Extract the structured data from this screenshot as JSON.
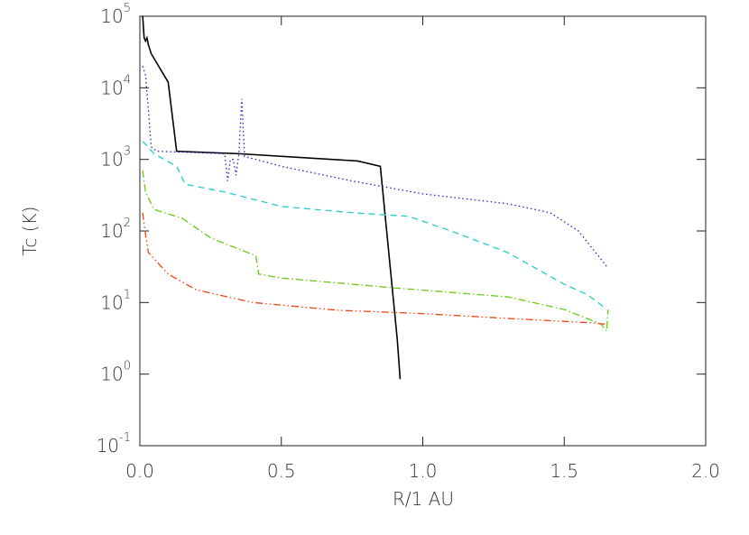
{
  "chart_data": {
    "type": "line",
    "ylog": true,
    "xlabel": "R/1 AU",
    "ylabel": "Tc (K)",
    "xlim": [
      0,
      2
    ],
    "ylim": [
      0.1,
      100000
    ],
    "xticks": [
      {
        "value": 0,
        "label": "0.0"
      },
      0.5,
      {
        "value": 1,
        "label": "1.0"
      },
      1.5,
      {
        "value": 2,
        "label": "2.0"
      }
    ],
    "yticks": [
      {
        "value": 0.1,
        "label": "10",
        "exponent": "-1"
      },
      {
        "value": 1,
        "label": "10",
        "exponent": "0"
      },
      {
        "value": 10,
        "label": "10",
        "exponent": "1"
      },
      {
        "value": 100,
        "label": "10",
        "exponent": "2"
      },
      {
        "value": 1000,
        "label": "10",
        "exponent": "3"
      },
      {
        "value": 10000,
        "label": "10",
        "exponent": "4"
      },
      {
        "value": 100000,
        "label": "10",
        "exponent": "5"
      }
    ],
    "series": [
      {
        "color": "#000000",
        "dash": "solid",
        "x": [
          0.01,
          0.015,
          0.02,
          0.025,
          0.03,
          0.04,
          0.1,
          0.13,
          0.35,
          0.77,
          0.85,
          0.91,
          0.92
        ],
        "values": [
          100000,
          50000,
          45000,
          50000,
          40000,
          30000,
          12000,
          1300,
          1200,
          950,
          800,
          3,
          0.85
        ]
      },
      {
        "color": "#2222cc",
        "dash": "dotted",
        "x": [
          0.01,
          0.02,
          0.03,
          0.04,
          0.06,
          0.3,
          0.31,
          0.32,
          0.33,
          0.34,
          0.35,
          0.36,
          0.37,
          0.5,
          0.75,
          1.0,
          1.3,
          1.45,
          1.55,
          1.65
        ],
        "values": [
          20000,
          15000,
          5000,
          1500,
          1300,
          1200,
          500,
          1000,
          1000,
          600,
          1200,
          7000,
          1100,
          800,
          500,
          330,
          240,
          180,
          100,
          32
        ]
      },
      {
        "color": "#22cccc",
        "dash": "dashed",
        "x": [
          0.01,
          0.05,
          0.13,
          0.16,
          0.3,
          0.5,
          0.75,
          0.95,
          1.1,
          1.3,
          1.5,
          1.58,
          1.62,
          1.65
        ],
        "values": [
          1800,
          1200,
          800,
          450,
          350,
          220,
          180,
          160,
          100,
          50,
          18,
          13,
          10,
          8
        ]
      },
      {
        "color": "#66cc11",
        "dash": "dashdot",
        "x": [
          0.01,
          0.02,
          0.05,
          0.15,
          0.25,
          0.41,
          0.42,
          0.5,
          0.9,
          1.3,
          1.5,
          1.63,
          1.65,
          1.655
        ],
        "values": [
          700,
          350,
          200,
          150,
          80,
          45,
          25,
          22,
          16,
          12,
          8,
          5,
          4,
          8
        ]
      },
      {
        "color": "#ee4411",
        "dash": "dashdotdot",
        "x": [
          0.01,
          0.02,
          0.03,
          0.1,
          0.2,
          0.4,
          0.7,
          1.0,
          1.3,
          1.6,
          1.64,
          1.65
        ],
        "values": [
          180,
          90,
          50,
          25,
          15,
          10,
          7.8,
          7,
          6,
          5.2,
          5,
          5.5
        ]
      }
    ]
  }
}
